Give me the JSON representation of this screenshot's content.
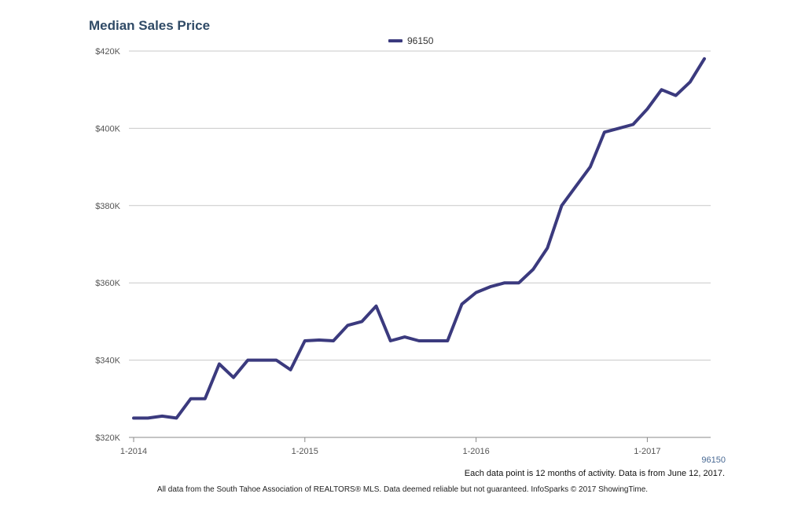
{
  "chart_data": {
    "type": "line",
    "title": "Median Sales Price",
    "x": [
      "2014-01",
      "2014-02",
      "2014-03",
      "2014-04",
      "2014-05",
      "2014-06",
      "2014-07",
      "2014-08",
      "2014-09",
      "2014-10",
      "2014-11",
      "2014-12",
      "2015-01",
      "2015-02",
      "2015-03",
      "2015-04",
      "2015-05",
      "2015-06",
      "2015-07",
      "2015-08",
      "2015-09",
      "2015-10",
      "2015-11",
      "2015-12",
      "2016-01",
      "2016-02",
      "2016-03",
      "2016-04",
      "2016-05",
      "2016-06",
      "2016-07",
      "2016-08",
      "2016-09",
      "2016-10",
      "2016-11",
      "2016-12",
      "2017-01",
      "2017-02",
      "2017-03",
      "2017-04",
      "2017-05"
    ],
    "series": [
      {
        "name": "96150",
        "color": "#3b3a7e",
        "values": [
          325000,
          325000,
          325500,
          325000,
          330000,
          330000,
          339000,
          335500,
          340000,
          340000,
          340000,
          337500,
          345000,
          345200,
          345000,
          349000,
          350000,
          354000,
          345000,
          346000,
          345000,
          345000,
          345000,
          354500,
          357500,
          359000,
          360000,
          360000,
          363500,
          369000,
          380000,
          385000,
          390000,
          399000,
          400000,
          401000,
          405000,
          410000,
          408500,
          412000,
          418000
        ]
      }
    ],
    "yticks": [
      "$320K",
      "$340K",
      "$360K",
      "$380K",
      "$400K",
      "$420K"
    ],
    "xticks": [
      "1-2014",
      "1-2015",
      "1-2016",
      "1-2017"
    ],
    "ylim": [
      320000,
      420000
    ],
    "grid": true,
    "legend": "top-center"
  },
  "series_label": "96150",
  "footnote": "Each data point is 12 months of activity. Data is from June 12, 2017.",
  "credits": "All data from the South Tahoe Association of REALTORS® MLS. Data deemed reliable but not guaranteed. InfoSparks © 2017 ShowingTime."
}
